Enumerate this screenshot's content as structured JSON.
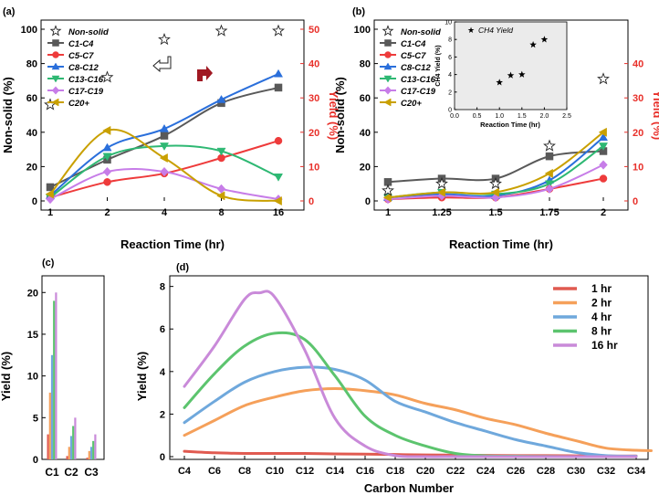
{
  "chart_data": [
    {
      "panel": "(a)",
      "type": "line",
      "xlabel": "Reaction Time (hr)",
      "ylabel_left": "Non-solid (%)",
      "ylabel_right": "Yield (%)",
      "categories": [
        "1",
        "2",
        "4",
        "8",
        "16"
      ],
      "ylim_left": [
        0,
        100
      ],
      "ylim_right": [
        0,
        50
      ],
      "left_ticks": [
        "0",
        "20",
        "40",
        "60",
        "80",
        "100"
      ],
      "right_ticks": [
        "0",
        "10",
        "20",
        "30",
        "40",
        "50"
      ],
      "non_solid": [
        56,
        72,
        94,
        99,
        99
      ],
      "series": [
        {
          "name": "C1-C4",
          "color": "#595959",
          "marker": "square",
          "values": [
            8,
            24,
            38,
            57,
            66
          ]
        },
        {
          "name": "C5-C7",
          "color": "#ee3b3b",
          "marker": "circle",
          "values": [
            2,
            11,
            16,
            25,
            35
          ]
        },
        {
          "name": "C8-C12",
          "color": "#2a6fdb",
          "marker": "triangle-up",
          "values": [
            3,
            31,
            42,
            59,
            74
          ]
        },
        {
          "name": "C13-C16",
          "color": "#2eb873",
          "marker": "triangle-down",
          "values": [
            2,
            26,
            32,
            29,
            14
          ]
        },
        {
          "name": "C17-C19",
          "color": "#c77de8",
          "marker": "diamond",
          "values": [
            1,
            17,
            17,
            7,
            1
          ]
        },
        {
          "name": "C20+",
          "color": "#c9a000",
          "marker": "triangle-left",
          "values": [
            4,
            41,
            25,
            3,
            0
          ]
        }
      ],
      "legend": [
        "Non-solid",
        "C1-C4",
        "C5-C7",
        "C8-C12",
        "C13-C16",
        "C17-C19",
        "C20+"
      ]
    },
    {
      "panel": "(b)",
      "type": "line",
      "xlabel": "Reaction Time (hr)",
      "ylabel_left": "Non-solid (%)",
      "ylabel_right": "Yield (%)",
      "categories": [
        "1",
        "1.25",
        "1.5",
        "1.75",
        "2"
      ],
      "ylim_left": [
        0,
        100
      ],
      "ylim_right": [
        0,
        50
      ],
      "left_ticks": [
        "0",
        "20",
        "40",
        "60",
        "80",
        "100"
      ],
      "right_ticks": [
        "0",
        "10",
        "20",
        "30",
        "40"
      ],
      "non_solid": [
        6,
        10,
        10,
        32,
        71
      ],
      "series": [
        {
          "name": "C1-C4",
          "color": "#595959",
          "marker": "square",
          "values": [
            11,
            13,
            13,
            26,
            29
          ]
        },
        {
          "name": "C5-C7",
          "color": "#ee3b3b",
          "marker": "circle",
          "values": [
            1,
            2,
            2,
            7,
            13
          ]
        },
        {
          "name": "C8-C12",
          "color": "#2a6fdb",
          "marker": "triangle-up",
          "values": [
            2,
            4,
            3,
            12,
            37
          ]
        },
        {
          "name": "C13-C16",
          "color": "#2eb873",
          "marker": "triangle-down",
          "values": [
            2,
            5,
            4,
            10,
            32
          ]
        },
        {
          "name": "C17-C19",
          "color": "#c77de8",
          "marker": "diamond",
          "values": [
            1,
            3,
            2,
            7,
            21
          ]
        },
        {
          "name": "C20+",
          "color": "#c9a000",
          "marker": "triangle-left",
          "values": [
            2,
            5,
            5,
            16,
            40
          ]
        }
      ],
      "legend": [
        "Non-solid",
        "C1-C4",
        "C5-C7",
        "C8-C12",
        "C13-C16",
        "C17-C19",
        "C20+"
      ],
      "inset": {
        "type": "scatter",
        "legend": "CH4 Yield",
        "xlabel": "Reaction Time (hr)",
        "ylabel": "CH4 Yield (%)",
        "xlim": [
          0,
          2.5
        ],
        "ylim": [
          0,
          10
        ],
        "x_ticks": [
          "0.0",
          "0.5",
          "1.0",
          "1.5",
          "2.0",
          "2.5"
        ],
        "y_ticks": [
          "0",
          "2",
          "4",
          "6",
          "8",
          "10"
        ],
        "x": [
          1.0,
          1.25,
          1.5,
          1.75,
          2.0
        ],
        "y": [
          3.1,
          3.9,
          4.0,
          7.4,
          8.0
        ]
      }
    },
    {
      "panel": "(c)",
      "type": "bar",
      "ylabel": "Yield (%)",
      "categories": [
        "C1",
        "C2",
        "C3"
      ],
      "ylim": [
        0,
        22
      ],
      "y_ticks": [
        "0",
        "5",
        "10",
        "15",
        "20"
      ],
      "series": [
        {
          "name": "1 hr",
          "color": "#e05a50",
          "values": [
            3.0,
            0.4,
            0.2
          ]
        },
        {
          "name": "2 hr",
          "color": "#f5a05a",
          "values": [
            8.0,
            1.5,
            1.0
          ]
        },
        {
          "name": "4 hr",
          "color": "#6fa8dc",
          "values": [
            12.5,
            2.8,
            1.5
          ]
        },
        {
          "name": "8 hr",
          "color": "#5cc46e",
          "values": [
            19.0,
            4.0,
            2.2
          ]
        },
        {
          "name": "16 hr",
          "color": "#c98ad9",
          "values": [
            20.0,
            5.0,
            3.0
          ]
        }
      ]
    },
    {
      "panel": "(d)",
      "type": "line",
      "xlabel": "Carbon Number",
      "ylabel": "Yield (%)",
      "xlim": [
        3.5,
        35
      ],
      "ylim": [
        0,
        8.5
      ],
      "y_ticks": [
        "0",
        "2",
        "4",
        "6",
        "8"
      ],
      "x_ticks": [
        "C4",
        "C6",
        "C8",
        "C10",
        "C12",
        "C14",
        "C16",
        "C18",
        "C20",
        "C22",
        "C24",
        "C26",
        "C28",
        "C30",
        "C32",
        "C34"
      ],
      "series": [
        {
          "name": "1 hr",
          "color": "#e05a50",
          "x": [
            4,
            6,
            8,
            10,
            12,
            14,
            16,
            18,
            20,
            22,
            24,
            26,
            28,
            30,
            32,
            34
          ],
          "values": [
            0.25,
            0.18,
            0.15,
            0.15,
            0.15,
            0.13,
            0.12,
            0.1,
            0.08,
            0.07,
            0.06,
            0.05,
            0.05,
            0.04,
            0.03,
            0.03
          ]
        },
        {
          "name": "2 hr",
          "color": "#f5a05a",
          "x": [
            4,
            6,
            8,
            10,
            12,
            14,
            16,
            18,
            20,
            22,
            24,
            26,
            28,
            30,
            32,
            34,
            35
          ],
          "values": [
            1.0,
            1.7,
            2.4,
            2.8,
            3.1,
            3.2,
            3.1,
            2.9,
            2.5,
            2.2,
            1.8,
            1.5,
            1.1,
            0.75,
            0.4,
            0.3,
            0.28
          ]
        },
        {
          "name": "4 hr",
          "color": "#6fa8dc",
          "x": [
            4,
            6,
            8,
            10,
            12,
            14,
            16,
            18,
            20,
            22,
            24,
            26,
            28,
            30,
            32,
            34
          ],
          "values": [
            1.6,
            2.6,
            3.5,
            4.0,
            4.2,
            4.1,
            3.6,
            2.6,
            2.1,
            1.6,
            1.2,
            0.8,
            0.5,
            0.2,
            0.05,
            0.02
          ]
        },
        {
          "name": "8 hr",
          "color": "#5cc46e",
          "x": [
            4,
            6,
            8,
            10,
            12,
            14,
            16,
            18,
            20,
            22,
            24,
            26,
            28,
            30,
            32,
            34
          ],
          "values": [
            2.3,
            3.9,
            5.2,
            5.8,
            5.5,
            3.8,
            1.9,
            1.0,
            0.5,
            0.15,
            0.04,
            0.02,
            0.01,
            0.0,
            0.0,
            0.0
          ]
        },
        {
          "name": "16 hr",
          "color": "#c98ad9",
          "x": [
            4,
            6,
            8,
            9,
            10,
            12,
            14,
            16,
            18,
            20,
            22,
            24,
            26,
            28,
            30,
            32,
            34
          ],
          "values": [
            3.3,
            5.2,
            7.4,
            7.7,
            7.5,
            5.0,
            1.8,
            0.5,
            0.05,
            0.0,
            0.0,
            0.0,
            0.0,
            0.0,
            0.0,
            0.0,
            0.0
          ]
        }
      ],
      "legend": [
        "1 hr",
        "2 hr",
        "4 hr",
        "8 hr",
        "16 hr"
      ]
    }
  ]
}
